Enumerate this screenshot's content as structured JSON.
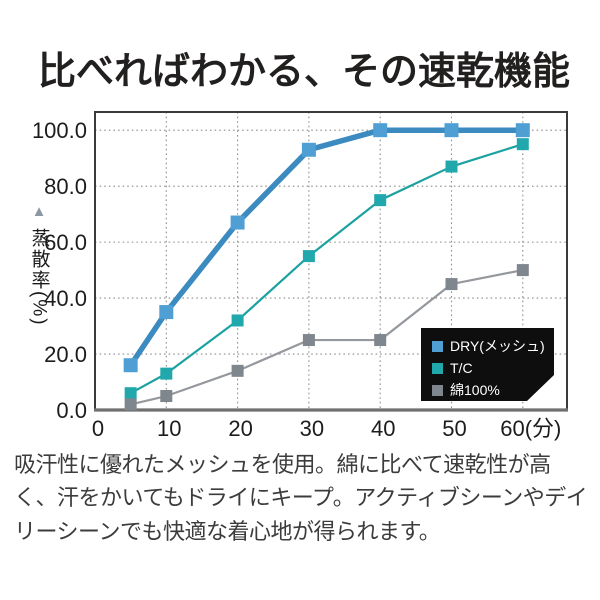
{
  "title": "比べればわかる、その速乾機能",
  "description": "吸汗性に優れたメッシュを使用。綿に比べて速乾性が高く、汗をかいてもドライにキープ。アクティブシーンやデイリーシーンでも快適な着心地が得られます。",
  "chart_data": {
    "type": "line",
    "title": "",
    "x": [
      5,
      10,
      20,
      30,
      40,
      50,
      60
    ],
    "series": [
      {
        "name": "DRY(メッシュ)",
        "color": "#3b8ac0",
        "marker_color": "#4f9fd4",
        "line_width": 5.5,
        "marker_size": 14,
        "values": [
          16,
          35,
          67,
          93,
          100,
          100,
          100
        ]
      },
      {
        "name": "T/C",
        "color": "#1ba1a1",
        "marker_color": "#21a8ac",
        "line_width": 2.2,
        "marker_size": 12,
        "values": [
          6,
          13,
          32,
          55,
          75,
          87,
          95
        ]
      },
      {
        "name": "綿100%",
        "color": "#95999e",
        "marker_color": "#7f868d",
        "line_width": 2.2,
        "marker_size": 12,
        "values": [
          2,
          5,
          14,
          25,
          25,
          45,
          50
        ]
      }
    ],
    "xlabel": "",
    "ylabel": "蒸散率(%)",
    "ylabel_marker": "▲",
    "x_ticks": [
      0,
      10,
      20,
      30,
      40,
      50,
      60
    ],
    "x_unit": "(分)",
    "y_ticks": [
      100,
      80,
      60,
      40,
      20,
      0
    ],
    "y_tick_labels": [
      "100.0",
      "80.0",
      "60.0",
      "40.0",
      "20.0",
      "0.0"
    ],
    "xlim": [
      0,
      66.2
    ],
    "ylim": [
      0,
      106.5
    ],
    "grid": true,
    "legend": {
      "position": "bottom-right",
      "bg": "#0e0e0e",
      "text_color": "#ffffff"
    }
  },
  "colors": {
    "grid": "#8e8e8e",
    "axis_border": "#3a3a3a",
    "axis_bottom": "#707070",
    "tick_text": "#1c1c1c",
    "title_text": "#221f1f",
    "body_text": "#3c3c3c",
    "ylabel_marker": "#8c98a6"
  }
}
